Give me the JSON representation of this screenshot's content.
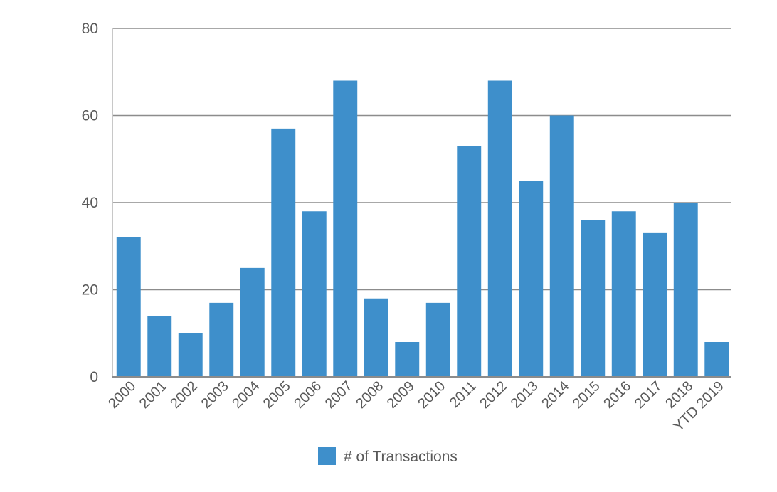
{
  "chart_data": {
    "type": "bar",
    "categories": [
      "2000",
      "2001",
      "2002",
      "2003",
      "2004",
      "2005",
      "2006",
      "2007",
      "2008",
      "2009",
      "2010",
      "2011",
      "2012",
      "2013",
      "2014",
      "2015",
      "2016",
      "2017",
      "2018",
      "YTD 2019"
    ],
    "series": [
      {
        "name": "# of Transactions",
        "values": [
          32,
          14,
          10,
          17,
          25,
          57,
          38,
          68,
          18,
          8,
          17,
          53,
          68,
          45,
          60,
          36,
          38,
          33,
          40,
          8
        ],
        "color": "#3e8fcb"
      }
    ],
    "ylim": [
      0,
      80
    ],
    "yticks": [
      "0",
      "20",
      "40",
      "60",
      "80"
    ],
    "grid": true,
    "legend_position": "bottom-center"
  }
}
